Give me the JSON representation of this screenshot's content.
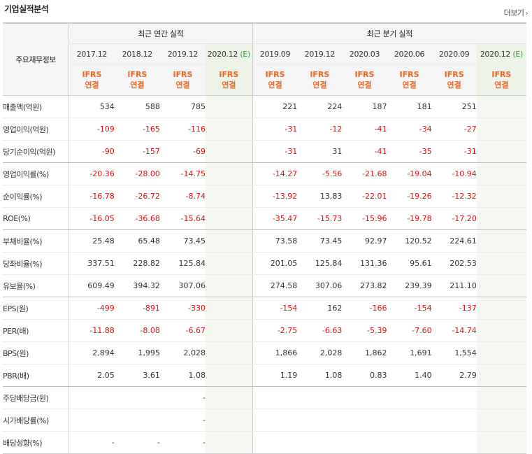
{
  "title": "기업실적분석",
  "more_label": "더보기",
  "header": {
    "corner": "주요재무정보",
    "annual_group": "최근 연간 실적",
    "quarter_group": "최근 분기 실적",
    "annual_dates": [
      "2017.12",
      "2018.12",
      "2019.12"
    ],
    "annual_est": {
      "date": "2020.12",
      "mark": "(E)"
    },
    "quarter_dates": [
      "2019.09",
      "2019.12",
      "2020.03",
      "2020.06",
      "2020.09"
    ],
    "quarter_est": {
      "date": "2020.12",
      "mark": "(E)"
    },
    "ifrs_top": "IFRS",
    "ifrs_bottom": "연결"
  },
  "rows": [
    {
      "label": "매출액(억원)",
      "values": [
        "534",
        "588",
        "785",
        "",
        "221",
        "224",
        "187",
        "181",
        "251",
        ""
      ]
    },
    {
      "label": "영업이익(억원)",
      "values": [
        "-109",
        "-165",
        "-116",
        "",
        "-31",
        "-12",
        "-41",
        "-34",
        "-27",
        ""
      ]
    },
    {
      "label": "당기순이익(억원)",
      "values": [
        "-90",
        "-157",
        "-69",
        "",
        "-31",
        "31",
        "-41",
        "-35",
        "-31",
        ""
      ]
    },
    {
      "label": "영업이익률(%)",
      "values": [
        "-20.36",
        "-28.00",
        "-14.75",
        "",
        "-14.27",
        "-5.56",
        "-21.68",
        "-19.04",
        "-10.94",
        ""
      ]
    },
    {
      "label": "순이익률(%)",
      "values": [
        "-16.78",
        "-26.72",
        "-8.74",
        "",
        "-13.92",
        "13.83",
        "-22.01",
        "-19.26",
        "-12.32",
        ""
      ]
    },
    {
      "label": "ROE(%)",
      "values": [
        "-16.05",
        "-36.68",
        "-15.64",
        "",
        "-35.47",
        "-15.73",
        "-15.96",
        "-19.78",
        "-17.20",
        ""
      ]
    },
    {
      "label": "부채비율(%)",
      "values": [
        "25.48",
        "65.48",
        "73.45",
        "",
        "73.58",
        "73.45",
        "92.97",
        "120.52",
        "224.61",
        ""
      ]
    },
    {
      "label": "당좌비율(%)",
      "values": [
        "337.51",
        "228.82",
        "125.84",
        "",
        "201.05",
        "125.84",
        "131.36",
        "95.61",
        "202.53",
        ""
      ]
    },
    {
      "label": "유보율(%)",
      "values": [
        "609.49",
        "394.32",
        "307.06",
        "",
        "274.58",
        "307.06",
        "273.82",
        "239.39",
        "211.10",
        ""
      ]
    },
    {
      "label": "EPS(원)",
      "values": [
        "-499",
        "-891",
        "-330",
        "",
        "-154",
        "162",
        "-166",
        "-154",
        "-137",
        ""
      ]
    },
    {
      "label": "PER(배)",
      "values": [
        "-11.88",
        "-8.08",
        "-6.67",
        "",
        "-2.75",
        "-6.63",
        "-5.39",
        "-7.60",
        "-14.74",
        ""
      ]
    },
    {
      "label": "BPS(원)",
      "values": [
        "2,894",
        "1,995",
        "2,028",
        "",
        "1,866",
        "2,028",
        "1,862",
        "1,691",
        "1,554",
        ""
      ]
    },
    {
      "label": "PBR(배)",
      "values": [
        "2.05",
        "3.61",
        "1.08",
        "",
        "1.19",
        "1.08",
        "0.83",
        "1.40",
        "2.79",
        ""
      ]
    },
    {
      "label": "주당배당금(원)",
      "values": [
        "",
        "",
        "-",
        "",
        "",
        "",
        "",
        "",
        "",
        ""
      ]
    },
    {
      "label": "시가배당률(%)",
      "values": [
        "",
        "",
        "-",
        "",
        "",
        "",
        "",
        "",
        "",
        ""
      ]
    },
    {
      "label": "배당성향(%)",
      "values": [
        "-",
        "-",
        "-",
        "",
        "",
        "",
        "",
        "",
        "",
        ""
      ]
    }
  ],
  "colors": {
    "negative": "#e01010",
    "ifrs": "#f26522",
    "estimate_mark": "#3a9c3a",
    "estimate_bg": "#f4f8f0"
  }
}
